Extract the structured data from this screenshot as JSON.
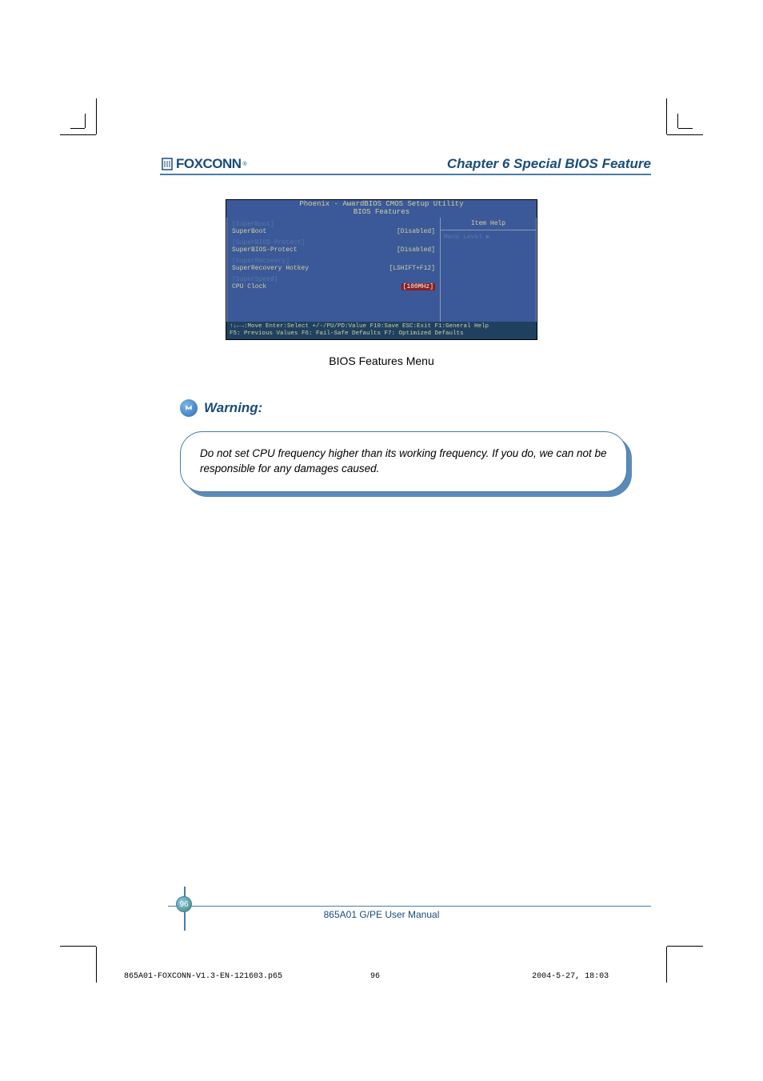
{
  "header": {
    "logo_text": "FOXCONN",
    "chapter_title": "Chapter 6  Special BIOS Feature"
  },
  "bios": {
    "title_line1": "Phoenix - AwardBIOS CMOS Setup Utility",
    "title_line2": "BIOS Features",
    "rows": [
      {
        "cat": "[SuperBoot]",
        "item": "SuperBoot",
        "val": "[Disabled]",
        "hl": false
      },
      {
        "cat": "[SuperBIOS-Protect]",
        "item": "SuperBIOS-Protect",
        "val": "[Disabled]",
        "hl": false
      },
      {
        "cat": "[SuperRecovery]",
        "item": "SuperRecovery Hotkey",
        "val": "[LSHIFT+F12]",
        "hl": false
      },
      {
        "cat": "[SuperSpeed]",
        "item": "CPU Clock",
        "val": "[100MHz]",
        "hl": true
      }
    ],
    "help_header": "Item Help",
    "menu_level": "Menu Level   ▶",
    "footer_line1": "↑↓←→:Move  Enter:Select  +/-/PU/PD:Value  F10:Save  ESC:Exit  F1:General Help",
    "footer_line2": "F5: Previous Values    F6: Fail-Safe Defaults    F7: Optimized Defaults"
  },
  "caption": "BIOS Features Menu",
  "warning": {
    "title": "Warning:",
    "body": "Do not set CPU frequency higher than its working frequency.  If you do, we can not be responsible for any damages caused."
  },
  "footer": {
    "page_num": "96",
    "manual": "865A01 G/PE User Manual"
  },
  "docfoot": {
    "file": "865A01-FOXCONN-V1.3-EN-121603.p65",
    "page": "96",
    "date": "2004-5-27, 18:03"
  },
  "colors": {
    "brand": "#1a4d7a",
    "line": "#4a7ba6",
    "bios_bg": "#3b5998",
    "bios_text": "#d0d0a0",
    "bios_dim": "#5577aa",
    "bios_hl_bg": "#8b2020",
    "shadow": "#5a8bb8"
  }
}
